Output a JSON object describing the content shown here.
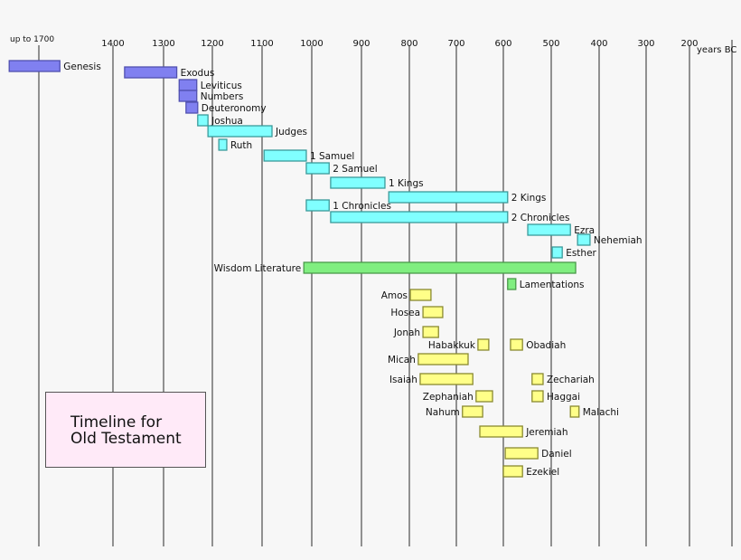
{
  "chart_data": {
    "type": "timeline",
    "title": "Timeline for Old Testament",
    "x_unit_label": "years BC",
    "x_ticks": [
      "up to 1700",
      "1400",
      "1300",
      "1200",
      "1100",
      "1000",
      "900",
      "800",
      "700",
      "600",
      "500",
      "400",
      "300",
      "200"
    ],
    "grid": true,
    "colors": {
      "torah": "#8080f0",
      "history": "#80ffff",
      "wisdom": "#80ee80",
      "prophets": "#ffff88",
      "title_box": "#ffeaf8",
      "background": "#f7f7f7"
    },
    "series": [
      {
        "name": "Genesis",
        "group": "torah",
        "start": 1820,
        "end": 1615
      },
      {
        "name": "Exodus",
        "group": "torah",
        "start": 1377,
        "end": 1273
      },
      {
        "name": "Leviticus",
        "group": "torah",
        "start": 1268,
        "end": 1232
      },
      {
        "name": "Numbers",
        "group": "torah",
        "start": 1268,
        "end": 1232
      },
      {
        "name": "Deuteronomy",
        "group": "torah",
        "start": 1254,
        "end": 1230
      },
      {
        "name": "Joshua",
        "group": "history",
        "start": 1230,
        "end": 1209
      },
      {
        "name": "Judges",
        "group": "history",
        "start": 1209,
        "end": 1080
      },
      {
        "name": "Ruth",
        "group": "history",
        "start": 1187,
        "end": 1171
      },
      {
        "name": "1 Samuel",
        "group": "history",
        "start": 1096,
        "end": 1011
      },
      {
        "name": "2 Samuel",
        "group": "history",
        "start": 1011,
        "end": 965
      },
      {
        "name": "1 Kings",
        "group": "history",
        "start": 962,
        "end": 851
      },
      {
        "name": "2 Kings",
        "group": "history",
        "start": 843,
        "end": 591
      },
      {
        "name": "1 Chronicles",
        "group": "history",
        "start": 1011,
        "end": 965
      },
      {
        "name": "2 Chronicles",
        "group": "history",
        "start": 962,
        "end": 591
      },
      {
        "name": "Ezra",
        "group": "history",
        "start": 549,
        "end": 460
      },
      {
        "name": "Nehemiah",
        "group": "history",
        "start": 445,
        "end": 419
      },
      {
        "name": "Esther",
        "group": "history",
        "start": 498,
        "end": 477
      },
      {
        "name": "Wisdom Literature",
        "group": "wisdom",
        "start": 1016,
        "end": 449
      },
      {
        "name": "Lamentations",
        "group": "wisdom",
        "start": 591,
        "end": 574
      },
      {
        "name": "Amos",
        "group": "prophets",
        "start": 798,
        "end": 754
      },
      {
        "name": "Hosea",
        "group": "prophets",
        "start": 771,
        "end": 729
      },
      {
        "name": "Jonah",
        "group": "prophets",
        "start": 771,
        "end": 738
      },
      {
        "name": "Habakkuk",
        "group": "prophets",
        "start": 654,
        "end": 631
      },
      {
        "name": "Obadiah",
        "group": "prophets",
        "start": 585,
        "end": 560
      },
      {
        "name": "Micah",
        "group": "prophets",
        "start": 781,
        "end": 675
      },
      {
        "name": "Isaiah",
        "group": "prophets",
        "start": 777,
        "end": 665
      },
      {
        "name": "Zechariah",
        "group": "prophets",
        "start": 540,
        "end": 517
      },
      {
        "name": "Zephaniah",
        "group": "prophets",
        "start": 658,
        "end": 623
      },
      {
        "name": "Haggai",
        "group": "prophets",
        "start": 540,
        "end": 517
      },
      {
        "name": "Nahum",
        "group": "prophets",
        "start": 687,
        "end": 644
      },
      {
        "name": "Malachi",
        "group": "prophets",
        "start": 460,
        "end": 442
      },
      {
        "name": "Jeremiah",
        "group": "prophets",
        "start": 650,
        "end": 560
      },
      {
        "name": "Daniel",
        "group": "prophets",
        "start": 596,
        "end": 528
      },
      {
        "name": "Ezekiel",
        "group": "prophets",
        "start": 600,
        "end": 560
      }
    ]
  }
}
